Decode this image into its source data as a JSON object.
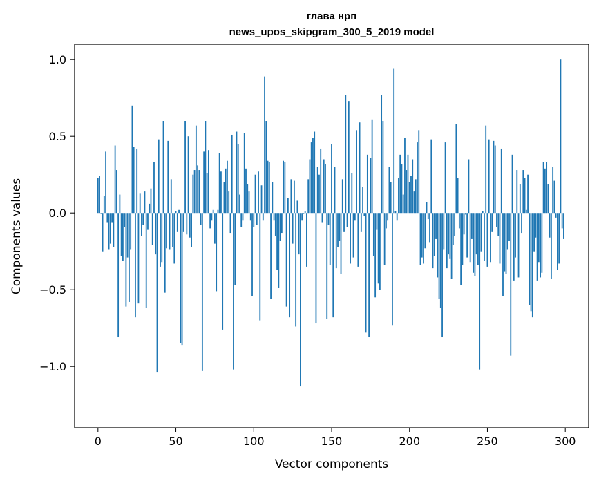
{
  "chart_data": {
    "type": "bar",
    "title": "глава нрп",
    "subtitle": "news_upos_skipgram_300_5_2019 model",
    "xlabel": "Vector components",
    "ylabel": "Components values",
    "bar_color": "#1f77b4",
    "xlim": [
      -15,
      315
    ],
    "ylim": [
      -1.4,
      1.1
    ],
    "xticks": [
      0,
      50,
      100,
      150,
      200,
      250,
      300
    ],
    "xtick_labels": [
      "0",
      "50",
      "100",
      "150",
      "200",
      "250",
      "300"
    ],
    "yticks": [
      -1.0,
      -0.5,
      0.0,
      0.5,
      1.0
    ],
    "ytick_labels": [
      "−1.0",
      "−0.5",
      "0.0",
      "0.5",
      "1.0"
    ],
    "grid": false,
    "values": [
      0.23,
      0.24,
      0.0,
      -0.25,
      0.11,
      0.4,
      -0.06,
      -0.24,
      -0.2,
      -0.06,
      -0.22,
      0.44,
      0.28,
      -0.81,
      0.12,
      -0.28,
      -0.31,
      -0.09,
      -0.61,
      -0.29,
      -0.58,
      -0.24,
      0.7,
      0.43,
      -0.68,
      0.42,
      -0.59,
      0.13,
      -0.15,
      -0.08,
      0.14,
      -0.62,
      -0.11,
      0.06,
      0.16,
      -0.21,
      0.33,
      -0.27,
      -1.04,
      0.48,
      -0.35,
      -0.32,
      0.6,
      -0.52,
      -0.23,
      0.47,
      -0.24,
      0.22,
      -0.22,
      -0.33,
      0.01,
      -0.12,
      0.02,
      -0.85,
      -0.86,
      -0.12,
      0.6,
      -0.14,
      0.5,
      -0.16,
      -0.22,
      0.25,
      0.28,
      0.57,
      0.31,
      0.28,
      -0.08,
      -1.03,
      0.4,
      0.6,
      0.26,
      0.41,
      -0.1,
      -0.05,
      0.02,
      -0.2,
      -0.51,
      0.02,
      0.39,
      0.27,
      -0.76,
      0.2,
      0.29,
      0.34,
      0.14,
      -0.13,
      0.51,
      -1.02,
      -0.47,
      0.53,
      0.45,
      0.12,
      -0.09,
      -0.05,
      0.52,
      0.29,
      0.19,
      0.14,
      -0.05,
      -0.54,
      -0.09,
      0.25,
      -0.08,
      0.27,
      -0.7,
      0.18,
      -0.05,
      0.89,
      0.6,
      0.34,
      0.33,
      -0.56,
      0.2,
      -0.05,
      -0.15,
      -0.37,
      -0.49,
      -0.18,
      -0.13,
      0.34,
      0.33,
      -0.61,
      0.1,
      -0.68,
      0.22,
      -0.2,
      0.21,
      -0.74,
      0.08,
      -0.27,
      -1.13,
      -0.05,
      0.0,
      0.01,
      -0.35,
      0.22,
      0.35,
      0.46,
      0.49,
      0.53,
      -0.72,
      0.3,
      0.25,
      0.42,
      -0.06,
      0.35,
      0.32,
      -0.69,
      -0.08,
      -0.34,
      0.45,
      -0.68,
      0.3,
      -0.36,
      -0.22,
      -0.18,
      -0.4,
      0.22,
      -0.12,
      0.77,
      -0.09,
      0.73,
      -0.33,
      0.26,
      -0.29,
      -0.05,
      0.54,
      -0.35,
      0.59,
      -0.12,
      0.17,
      -0.02,
      -0.78,
      0.38,
      -0.81,
      0.36,
      0.61,
      -0.28,
      -0.55,
      -0.11,
      -0.46,
      -0.5,
      0.77,
      0.6,
      -0.34,
      -0.1,
      -0.05,
      0.3,
      0.2,
      -0.73,
      0.94,
      0.01,
      -0.05,
      0.23,
      0.38,
      0.32,
      0.12,
      0.49,
      0.28,
      0.38,
      0.2,
      0.24,
      0.35,
      0.14,
      0.22,
      0.46,
      0.54,
      -0.34,
      -0.29,
      -0.33,
      -0.23,
      0.07,
      -0.04,
      -0.19,
      0.48,
      -0.36,
      -0.28,
      -0.17,
      -0.42,
      -0.56,
      -0.62,
      -0.81,
      -0.24,
      0.46,
      -0.36,
      -0.27,
      -0.3,
      -0.43,
      -0.21,
      -0.15,
      0.58,
      0.23,
      -0.1,
      -0.47,
      -0.34,
      -0.14,
      -0.01,
      -0.29,
      0.35,
      -0.32,
      -0.17,
      -0.39,
      -0.41,
      -0.27,
      -0.34,
      -1.02,
      -0.25,
      0.01,
      -0.31,
      0.57,
      -0.35,
      0.48,
      -0.32,
      -0.12,
      0.47,
      0.44,
      -0.09,
      -0.15,
      -0.33,
      0.42,
      -0.54,
      -0.38,
      -0.4,
      -0.24,
      -0.18,
      -0.93,
      0.38,
      -0.44,
      -0.29,
      0.28,
      -0.42,
      0.19,
      -0.13,
      0.28,
      0.23,
      0.02,
      0.25,
      -0.6,
      -0.64,
      -0.68,
      -0.25,
      -0.16,
      -0.44,
      -0.32,
      -0.42,
      -0.39,
      0.33,
      0.29,
      0.33,
      0.19,
      -0.16,
      -0.43,
      0.3,
      0.21,
      -0.03,
      -0.37,
      -0.33,
      1.0,
      -0.1,
      -0.17
    ]
  }
}
